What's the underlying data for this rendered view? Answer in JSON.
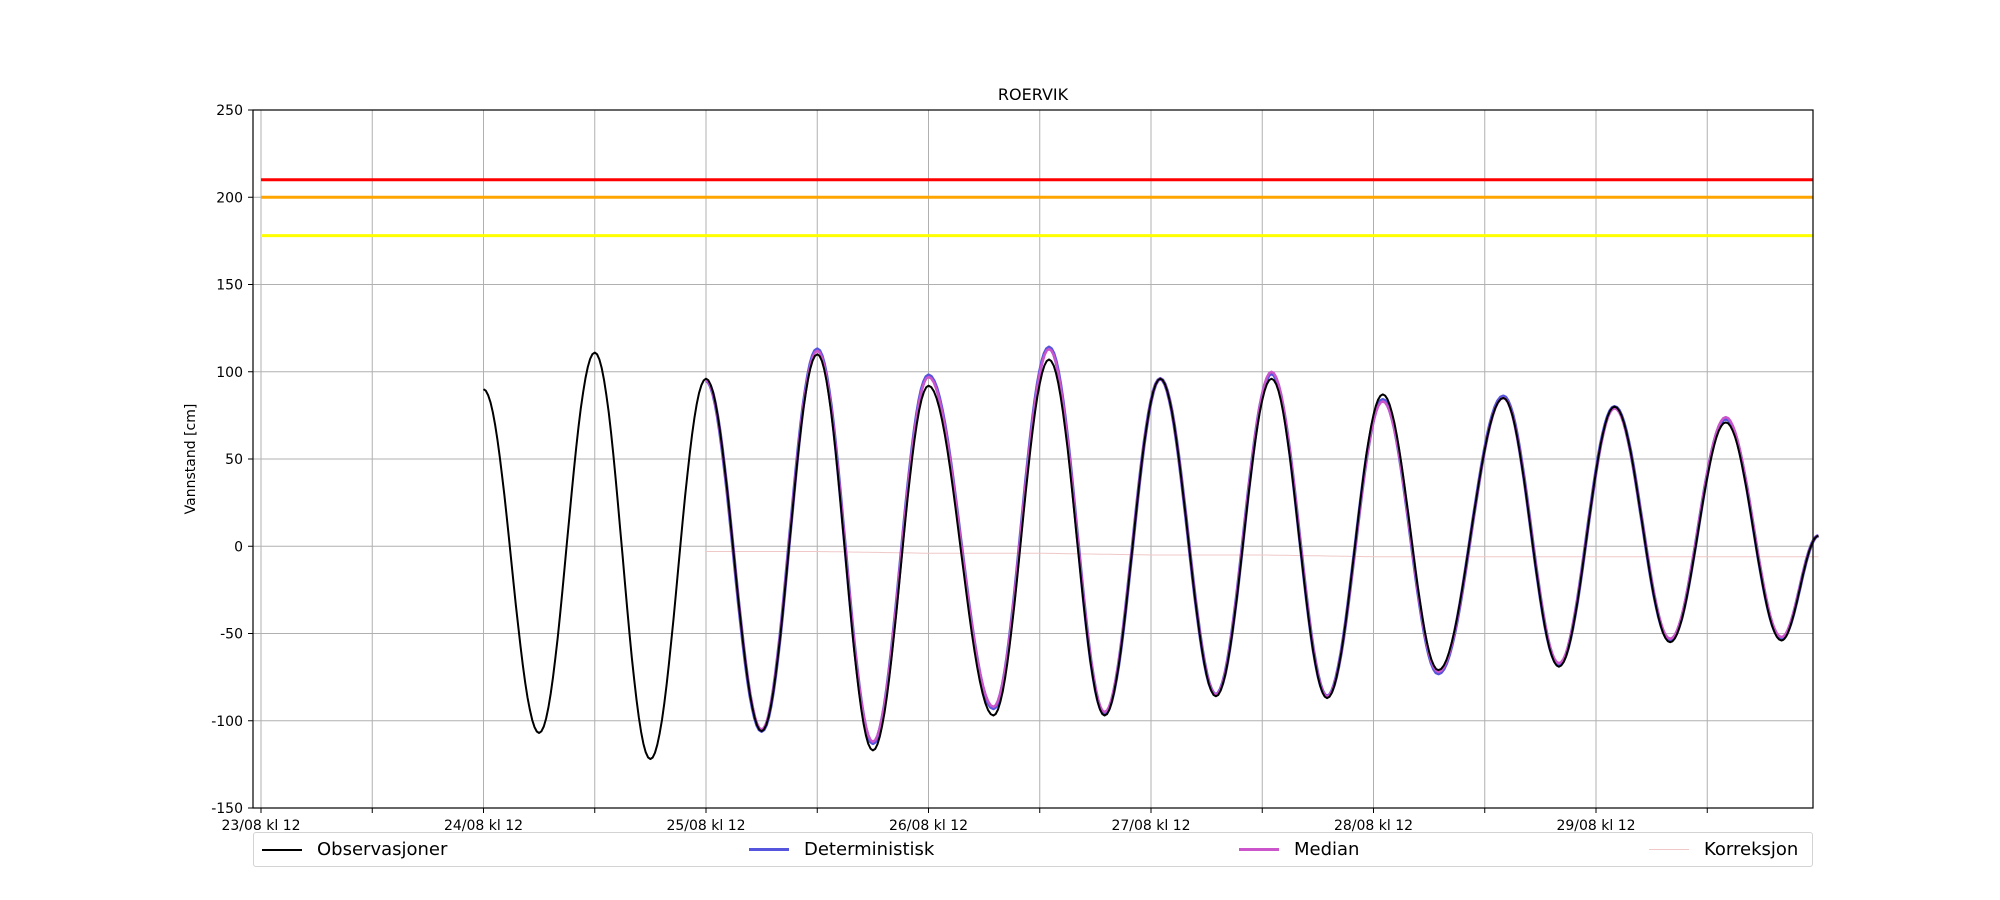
{
  "chart_data": {
    "type": "line",
    "title": "ROERVIK",
    "ylabel": "Vannstand [cm]",
    "xlabel": "",
    "ylim": [
      -150,
      250
    ],
    "yticks": [
      -150,
      -100,
      -50,
      0,
      50,
      100,
      150,
      200,
      250
    ],
    "xlim_hours_note": "x values are hours after 23/08 kl 12",
    "xlim": [
      "23/08 kl 12",
      "30/08 kl 12"
    ],
    "xtick_labels": [
      "23/08 kl 12",
      "24/08 kl 12",
      "25/08 kl 12",
      "26/08 kl 12",
      "27/08 kl 12",
      "28/08 kl 12",
      "29/08 kl 12"
    ],
    "grid": true,
    "legend_position": "bottom",
    "thresholds": [
      {
        "value": 210,
        "color": "#ff0000"
      },
      {
        "value": 200,
        "color": "#ffa500"
      },
      {
        "value": 178,
        "color": "#ffff00"
      }
    ],
    "series": [
      {
        "name": "Observasjoner",
        "color": "#000000",
        "x": [
          "24/08 kl 12",
          "24/08 kl 18",
          "25/08 kl 00",
          "25/08 kl 06",
          "25/08 kl 12",
          "25/08 kl 18",
          "26/08 kl 00",
          "26/08 kl 06",
          "26/08 kl 12",
          "26/08 kl 19",
          "27/08 kl 01",
          "27/08 kl 07",
          "27/08 kl 13",
          "27/08 kl 19",
          "28/08 kl 01",
          "28/08 kl 07",
          "28/08 kl 13",
          "28/08 kl 19",
          "29/08 kl 02",
          "29/08 kl 08",
          "29/08 kl 14",
          "29/08 kl 20",
          "30/08 kl 02",
          "30/08 kl 08",
          "30/08 kl 12"
        ],
        "y": [
          90,
          -107,
          111,
          -122,
          96,
          -106,
          110,
          -117,
          92,
          -97,
          107,
          -97,
          96,
          -86,
          96,
          -87,
          87,
          -71,
          85,
          -69,
          80,
          -55,
          71,
          -54,
          6
        ]
      },
      {
        "name": "Deterministisk",
        "color": "#5555dd",
        "x": [
          "25/08 kl 12",
          "25/08 kl 18",
          "26/08 kl 00",
          "26/08 kl 06",
          "26/08 kl 12",
          "26/08 kl 19",
          "27/08 kl 01",
          "27/08 kl 07",
          "27/08 kl 13",
          "27/08 kl 19",
          "28/08 kl 01",
          "28/08 kl 07",
          "28/08 kl 13",
          "28/08 kl 19",
          "29/08 kl 02",
          "29/08 kl 08",
          "29/08 kl 14",
          "29/08 kl 20",
          "30/08 kl 02",
          "30/08 kl 08",
          "30/08 kl 12"
        ],
        "y": [
          95,
          -106,
          113,
          -113,
          98,
          -93,
          114,
          -96,
          96,
          -85,
          99,
          -86,
          84,
          -73,
          86,
          -68,
          80,
          -54,
          73,
          -53,
          6
        ]
      },
      {
        "name": "Median",
        "color": "#cc55cc",
        "x": [
          "25/08 kl 12",
          "25/08 kl 18",
          "26/08 kl 00",
          "26/08 kl 06",
          "26/08 kl 12",
          "26/08 kl 19",
          "27/08 kl 01",
          "27/08 kl 07",
          "27/08 kl 13",
          "27/08 kl 19",
          "28/08 kl 01",
          "28/08 kl 07",
          "28/08 kl 13",
          "28/08 kl 19",
          "29/08 kl 02",
          "29/08 kl 08",
          "29/08 kl 14",
          "29/08 kl 20",
          "30/08 kl 02",
          "30/08 kl 08",
          "30/08 kl 12"
        ],
        "y": [
          95,
          -105,
          112,
          -112,
          97,
          -92,
          113,
          -95,
          96,
          -85,
          100,
          -86,
          83,
          -72,
          85,
          -67,
          79,
          -53,
          74,
          -52,
          6
        ]
      },
      {
        "name": "Korreksjon",
        "color": "#f0c8c8",
        "x": [
          "25/08 kl 12",
          "26/08 kl 00",
          "26/08 kl 12",
          "27/08 kl 00",
          "27/08 kl 12",
          "28/08 kl 00",
          "28/08 kl 12",
          "29/08 kl 00",
          "29/08 kl 12",
          "30/08 kl 00",
          "30/08 kl 12"
        ],
        "y": [
          -3,
          -3,
          -4,
          -4,
          -5,
          -5,
          -6,
          -6,
          -6,
          -6,
          -6
        ]
      }
    ]
  }
}
